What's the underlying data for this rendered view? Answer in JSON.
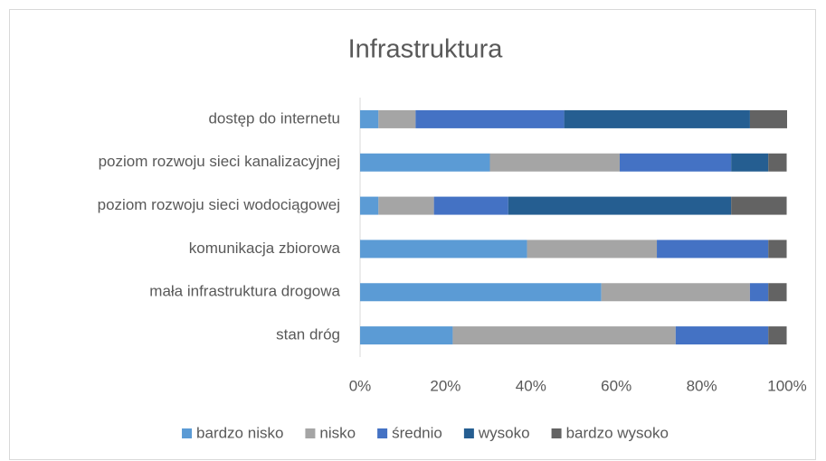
{
  "chart_data": {
    "type": "stacked_bar_horizontal",
    "title": "Infrastruktura",
    "categories": [
      "dostęp do internetu",
      "poziom rozwoju sieci kanalizacyjnej",
      "poziom rozwoju sieci wodociągowej",
      "komunikacja zbiorowa",
      "mała infrastruktura drogowa",
      "stan dróg"
    ],
    "series": [
      {
        "name": "bardzo nisko",
        "color": "#5b9bd5",
        "values": [
          4.3,
          30.4,
          4.3,
          39.1,
          56.5,
          21.7
        ]
      },
      {
        "name": "nisko",
        "color": "#a5a5a5",
        "values": [
          8.7,
          30.4,
          13.0,
          30.4,
          34.8,
          52.2
        ]
      },
      {
        "name": "średnio",
        "color": "#4472c4",
        "values": [
          34.8,
          26.1,
          17.4,
          26.1,
          4.3,
          21.7
        ]
      },
      {
        "name": "wysoko",
        "color": "#255e91",
        "values": [
          43.5,
          8.7,
          52.2,
          0,
          0,
          0
        ]
      },
      {
        "name": "bardzo wysoko",
        "color": "#636363",
        "values": [
          8.7,
          4.3,
          13.0,
          4.3,
          4.3,
          4.3
        ]
      }
    ],
    "xlim": [
      0,
      100
    ],
    "xticks": [
      {
        "value": 0,
        "label": "0%"
      },
      {
        "value": 20,
        "label": "20%"
      },
      {
        "value": 40,
        "label": "40%"
      },
      {
        "value": 60,
        "label": "60%"
      },
      {
        "value": 80,
        "label": "80%"
      },
      {
        "value": 100,
        "label": "100%"
      }
    ],
    "grid": false,
    "legend": "bottom"
  }
}
